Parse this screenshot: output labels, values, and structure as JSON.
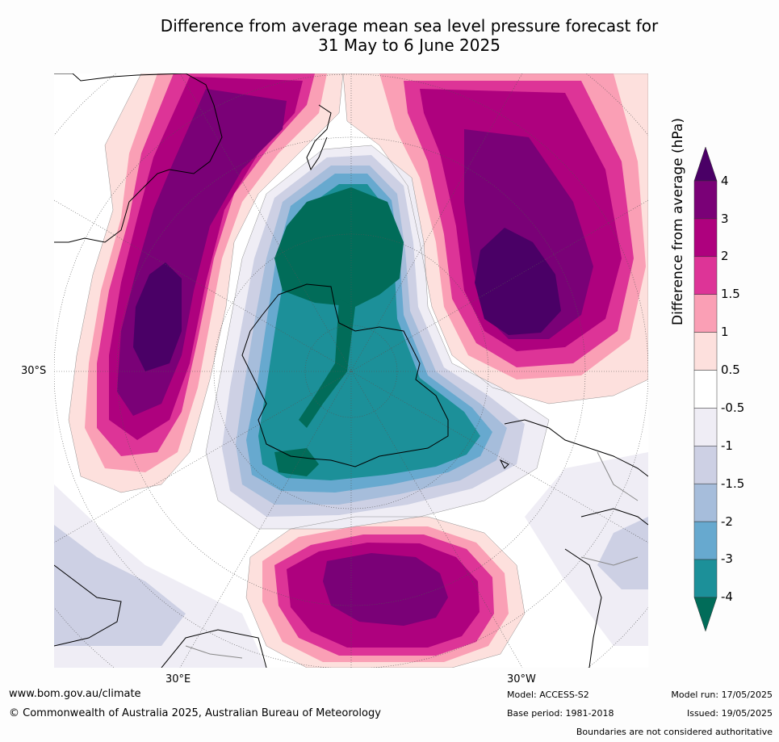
{
  "title": {
    "line1": "Difference from average mean sea level pressure forecast for",
    "line2": "31 May to 6 June 2025"
  },
  "map": {
    "projection": "south-polar",
    "labels": {
      "lat_30s": "30°S",
      "lon_30e": "30°E",
      "lon_30w": "30°W"
    },
    "regions": [
      {
        "name": "Australia high anomaly",
        "max_category": "3 to 4"
      },
      {
        "name": "South Pacific high anomaly",
        "max_category": "> 4"
      },
      {
        "name": "South Atlantic high anomaly",
        "max_category": "3 to 4"
      },
      {
        "name": "Antarctic low anomaly",
        "min_category": "< -4"
      }
    ]
  },
  "colorbar": {
    "label": "Difference from average (hPa)",
    "ticks": [
      "4",
      "3",
      "2",
      "1.5",
      "1",
      "0.5",
      "-0.5",
      "-1",
      "-1.5",
      "-2",
      "-3",
      "-4"
    ],
    "colors": {
      "gt4": "#4a0066",
      "c3_4": "#7a0177",
      "c2_3": "#ae017e",
      "c15_2": "#dd3497",
      "c1_15": "#fa9fb5",
      "c05_1": "#fde0dd",
      "neutral": "#ffffff",
      "cn1_n05": "#efedf5",
      "cn15_n1": "#cdd0e4",
      "cn2_n15": "#a6bddb",
      "cn3_n2": "#67a9cf",
      "cn4_n3": "#1c9099",
      "lt_n4": "#016c59"
    }
  },
  "footer": {
    "url": "www.bom.gov.au/climate",
    "copyright": "© Commonwealth of Australia 2025, Australian Bureau of Meteorology",
    "model": "Model: ACCESS-S2",
    "base_period": "Base period: 1981-2018",
    "model_run": "Model run: 17/05/2025",
    "issued": "Issued: 19/05/2025",
    "disclaimer": "Boundaries are not considered authoritative"
  }
}
